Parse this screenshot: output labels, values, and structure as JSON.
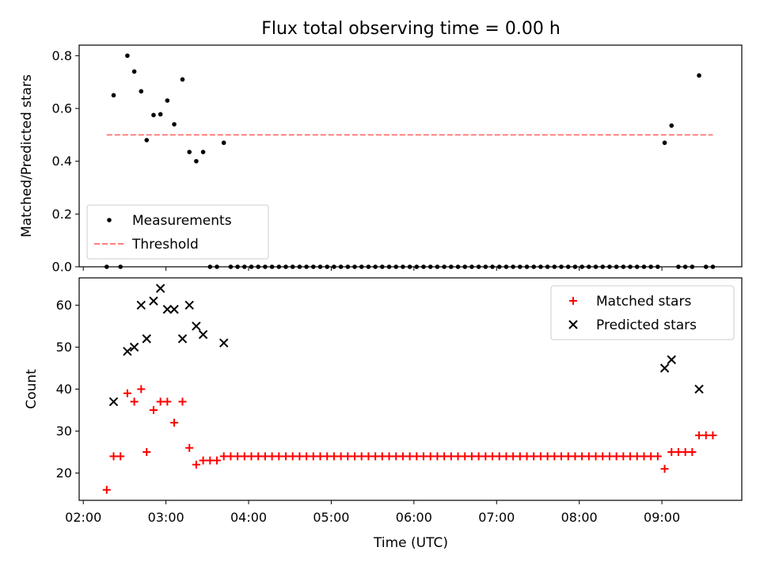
{
  "chart_data": {
    "type": "scatter",
    "title": "Flux total observing time = 0.00 h",
    "xlabel": "Time (UTC)",
    "x_tick_labels": [
      "02:00",
      "03:00",
      "04:00",
      "05:00",
      "06:00",
      "07:00",
      "08:00",
      "09:00"
    ],
    "xlim": [
      "01:57",
      "09:58"
    ],
    "panels": [
      {
        "id": "ratio",
        "ylabel": "Matched/Predicted stars",
        "ylim": [
          0,
          0.84
        ],
        "y_ticks": [
          0.0,
          0.2,
          0.4,
          0.6,
          0.8
        ],
        "y_tick_labels": [
          "0.0",
          "0.2",
          "0.4",
          "0.6",
          "0.8"
        ],
        "legend_position": "lower-left",
        "series": [
          {
            "name": "Measurements",
            "marker": "dot",
            "color": "#000000",
            "points": [
              [
                "02:17",
                0.0
              ],
              [
                "02:22",
                0.65
              ],
              [
                "02:27",
                0.0
              ],
              [
                "02:32",
                0.8
              ],
              [
                "02:37",
                0.74
              ],
              [
                "02:42",
                0.665
              ],
              [
                "02:46",
                0.48
              ],
              [
                "02:51",
                0.575
              ],
              [
                "02:56",
                0.578
              ],
              [
                "03:01",
                0.63
              ],
              [
                "03:06",
                0.54
              ],
              [
                "03:12",
                0.71
              ],
              [
                "03:17",
                0.435
              ],
              [
                "03:22",
                0.4
              ],
              [
                "03:27",
                0.435
              ],
              [
                "03:32",
                0.0
              ],
              [
                "03:37",
                0.0
              ],
              [
                "03:42",
                0.47
              ],
              [
                "03:47",
                0.0
              ],
              [
                "03:52",
                0.0
              ],
              [
                "03:57",
                0.0
              ],
              [
                "04:02",
                0.0
              ],
              [
                "04:07",
                0.0
              ],
              [
                "04:12",
                0.0
              ],
              [
                "04:17",
                0.0
              ],
              [
                "04:22",
                0.0
              ],
              [
                "04:27",
                0.0
              ],
              [
                "04:32",
                0.0
              ],
              [
                "04:37",
                0.0
              ],
              [
                "04:42",
                0.0
              ],
              [
                "04:47",
                0.0
              ],
              [
                "04:52",
                0.0
              ],
              [
                "04:57",
                0.0
              ],
              [
                "05:02",
                0.0
              ],
              [
                "05:07",
                0.0
              ],
              [
                "05:12",
                0.0
              ],
              [
                "05:17",
                0.0
              ],
              [
                "05:22",
                0.0
              ],
              [
                "05:27",
                0.0
              ],
              [
                "05:32",
                0.0
              ],
              [
                "05:37",
                0.0
              ],
              [
                "05:42",
                0.0
              ],
              [
                "05:47",
                0.0
              ],
              [
                "05:52",
                0.0
              ],
              [
                "05:57",
                0.0
              ],
              [
                "06:02",
                0.0
              ],
              [
                "06:07",
                0.0
              ],
              [
                "06:12",
                0.0
              ],
              [
                "06:17",
                0.0
              ],
              [
                "06:22",
                0.0
              ],
              [
                "06:27",
                0.0
              ],
              [
                "06:32",
                0.0
              ],
              [
                "06:37",
                0.0
              ],
              [
                "06:42",
                0.0
              ],
              [
                "06:47",
                0.0
              ],
              [
                "06:52",
                0.0
              ],
              [
                "06:57",
                0.0
              ],
              [
                "07:02",
                0.0
              ],
              [
                "07:07",
                0.0
              ],
              [
                "07:12",
                0.0
              ],
              [
                "07:17",
                0.0
              ],
              [
                "07:22",
                0.0
              ],
              [
                "07:27",
                0.0
              ],
              [
                "07:32",
                0.0
              ],
              [
                "07:37",
                0.0
              ],
              [
                "07:42",
                0.0
              ],
              [
                "07:47",
                0.0
              ],
              [
                "07:52",
                0.0
              ],
              [
                "07:57",
                0.0
              ],
              [
                "08:02",
                0.0
              ],
              [
                "08:07",
                0.0
              ],
              [
                "08:12",
                0.0
              ],
              [
                "08:17",
                0.0
              ],
              [
                "08:22",
                0.0
              ],
              [
                "08:27",
                0.0
              ],
              [
                "08:32",
                0.0
              ],
              [
                "08:37",
                0.0
              ],
              [
                "08:42",
                0.0
              ],
              [
                "08:47",
                0.0
              ],
              [
                "08:52",
                0.0
              ],
              [
                "08:57",
                0.0
              ],
              [
                "09:02",
                0.47
              ],
              [
                "09:07",
                0.535
              ],
              [
                "09:12",
                0.0
              ],
              [
                "09:17",
                0.0
              ],
              [
                "09:22",
                0.0
              ],
              [
                "09:27",
                0.725
              ],
              [
                "09:32",
                0.0
              ],
              [
                "09:37",
                0.0
              ]
            ]
          },
          {
            "name": "Threshold",
            "marker": "dashed-line",
            "color": "#ff7f7f",
            "points": [
              [
                "02:17",
                0.5
              ],
              [
                "09:37",
                0.5
              ]
            ]
          }
        ]
      },
      {
        "id": "count",
        "ylabel": "Count",
        "ylim": [
          13.5,
          66.5
        ],
        "y_ticks": [
          20,
          30,
          40,
          50,
          60
        ],
        "y_tick_labels": [
          "20",
          "30",
          "40",
          "50",
          "60"
        ],
        "legend_position": "upper-right",
        "series": [
          {
            "name": "Matched stars",
            "marker": "plus",
            "color": "#ff0000",
            "points": [
              [
                "02:17",
                16
              ],
              [
                "02:22",
                24
              ],
              [
                "02:27",
                24
              ],
              [
                "02:32",
                39
              ],
              [
                "02:37",
                37
              ],
              [
                "02:42",
                40
              ],
              [
                "02:46",
                25
              ],
              [
                "02:51",
                35
              ],
              [
                "02:56",
                37
              ],
              [
                "03:01",
                37
              ],
              [
                "03:06",
                32
              ],
              [
                "03:12",
                37
              ],
              [
                "03:17",
                26
              ],
              [
                "03:22",
                22
              ],
              [
                "03:27",
                23
              ],
              [
                "03:32",
                23
              ],
              [
                "03:37",
                23
              ],
              [
                "03:42",
                24
              ],
              [
                "03:47",
                24
              ],
              [
                "03:52",
                24
              ],
              [
                "03:57",
                24
              ],
              [
                "04:02",
                24
              ],
              [
                "04:07",
                24
              ],
              [
                "04:12",
                24
              ],
              [
                "04:17",
                24
              ],
              [
                "04:22",
                24
              ],
              [
                "04:27",
                24
              ],
              [
                "04:32",
                24
              ],
              [
                "04:37",
                24
              ],
              [
                "04:42",
                24
              ],
              [
                "04:47",
                24
              ],
              [
                "04:52",
                24
              ],
              [
                "04:57",
                24
              ],
              [
                "05:02",
                24
              ],
              [
                "05:07",
                24
              ],
              [
                "05:12",
                24
              ],
              [
                "05:17",
                24
              ],
              [
                "05:22",
                24
              ],
              [
                "05:27",
                24
              ],
              [
                "05:32",
                24
              ],
              [
                "05:37",
                24
              ],
              [
                "05:42",
                24
              ],
              [
                "05:47",
                24
              ],
              [
                "05:52",
                24
              ],
              [
                "05:57",
                24
              ],
              [
                "06:02",
                24
              ],
              [
                "06:07",
                24
              ],
              [
                "06:12",
                24
              ],
              [
                "06:17",
                24
              ],
              [
                "06:22",
                24
              ],
              [
                "06:27",
                24
              ],
              [
                "06:32",
                24
              ],
              [
                "06:37",
                24
              ],
              [
                "06:42",
                24
              ],
              [
                "06:47",
                24
              ],
              [
                "06:52",
                24
              ],
              [
                "06:57",
                24
              ],
              [
                "07:02",
                24
              ],
              [
                "07:07",
                24
              ],
              [
                "07:12",
                24
              ],
              [
                "07:17",
                24
              ],
              [
                "07:22",
                24
              ],
              [
                "07:27",
                24
              ],
              [
                "07:32",
                24
              ],
              [
                "07:37",
                24
              ],
              [
                "07:42",
                24
              ],
              [
                "07:47",
                24
              ],
              [
                "07:52",
                24
              ],
              [
                "07:57",
                24
              ],
              [
                "08:02",
                24
              ],
              [
                "08:07",
                24
              ],
              [
                "08:12",
                24
              ],
              [
                "08:17",
                24
              ],
              [
                "08:22",
                24
              ],
              [
                "08:27",
                24
              ],
              [
                "08:32",
                24
              ],
              [
                "08:37",
                24
              ],
              [
                "08:42",
                24
              ],
              [
                "08:47",
                24
              ],
              [
                "08:52",
                24
              ],
              [
                "08:57",
                24
              ],
              [
                "09:02",
                21
              ],
              [
                "09:07",
                25
              ],
              [
                "09:12",
                25
              ],
              [
                "09:17",
                25
              ],
              [
                "09:22",
                25
              ],
              [
                "09:27",
                29
              ],
              [
                "09:32",
                29
              ],
              [
                "09:37",
                29
              ]
            ]
          },
          {
            "name": "Predicted stars",
            "marker": "x",
            "color": "#000000",
            "points": [
              [
                "02:22",
                37
              ],
              [
                "02:32",
                49
              ],
              [
                "02:37",
                50
              ],
              [
                "02:42",
                60
              ],
              [
                "02:46",
                52
              ],
              [
                "02:51",
                61
              ],
              [
                "02:56",
                64
              ],
              [
                "03:01",
                59
              ],
              [
                "03:06",
                59
              ],
              [
                "03:12",
                52
              ],
              [
                "03:17",
                60
              ],
              [
                "03:22",
                55
              ],
              [
                "03:27",
                53
              ],
              [
                "03:42",
                51
              ],
              [
                "09:02",
                45
              ],
              [
                "09:07",
                47
              ],
              [
                "09:27",
                40
              ]
            ]
          }
        ]
      }
    ]
  }
}
